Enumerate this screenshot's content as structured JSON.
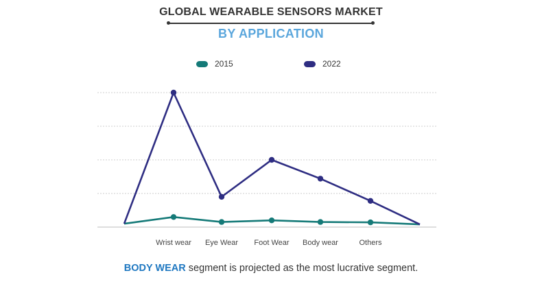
{
  "header": {
    "title": "GLOBAL WEARABLE SENSORS MARKET",
    "subtitle": "BY APPLICATION"
  },
  "colors": {
    "series_2015": "#157a78",
    "series_2022": "#2e2d82",
    "accent": "#1f78c1",
    "subtitle": "#5aa6dc"
  },
  "chart_data": {
    "type": "line",
    "title": "GLOBAL WEARABLE SENSORS MARKET",
    "subtitle": "BY APPLICATION",
    "categories": [
      "",
      "Wrist wear",
      "Eye Wear",
      "Foot Wear",
      "Body wear",
      "Others",
      ""
    ],
    "series": [
      {
        "name": "2015",
        "values": [
          0.1,
          0.3,
          0.15,
          0.2,
          0.15,
          0.14,
          0.08
        ],
        "markers": [
          false,
          true,
          true,
          true,
          true,
          true,
          false
        ]
      },
      {
        "name": "2022",
        "values": [
          0.1,
          4.0,
          0.9,
          2.0,
          1.44,
          0.78,
          0.08
        ],
        "markers": [
          false,
          true,
          true,
          true,
          true,
          true,
          false
        ]
      }
    ],
    "xlabel": "",
    "ylabel": "",
    "ylim": [
      0,
      4
    ],
    "grid": true,
    "legend_position": "top-center"
  },
  "footer": {
    "highlight": "BODY WEAR",
    "text": " segment is projected as the most lucrative segment."
  }
}
